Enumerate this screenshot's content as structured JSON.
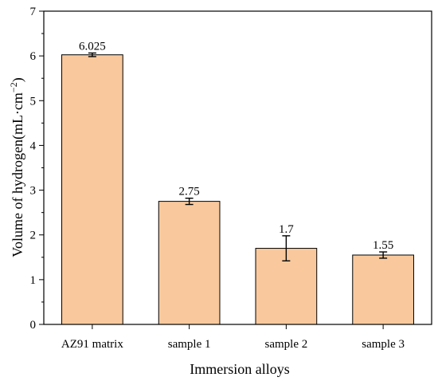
{
  "chart_data": {
    "type": "bar",
    "categories": [
      "AZ91 matrix",
      "sample 1",
      "sample 2",
      "sample 3"
    ],
    "values": [
      6.025,
      2.75,
      1.7,
      1.55
    ],
    "errors": [
      0.04,
      0.07,
      0.28,
      0.07
    ],
    "data_labels": [
      "6.025",
      "2.75",
      "1.7",
      "1.55"
    ],
    "title": "",
    "xlabel": "Immersion alloys",
    "ylabel_main": "Volume of hydrogen(mL·cm",
    "ylabel_sup": "−2",
    "ylabel_close": ")",
    "ylim": [
      0,
      7
    ],
    "yticks": [
      "0",
      "1",
      "2",
      "3",
      "4",
      "5",
      "6",
      "7"
    ],
    "grid": false,
    "legend": "none",
    "bar_color": "#f9c99d",
    "bar_edge_color": "#000000"
  }
}
